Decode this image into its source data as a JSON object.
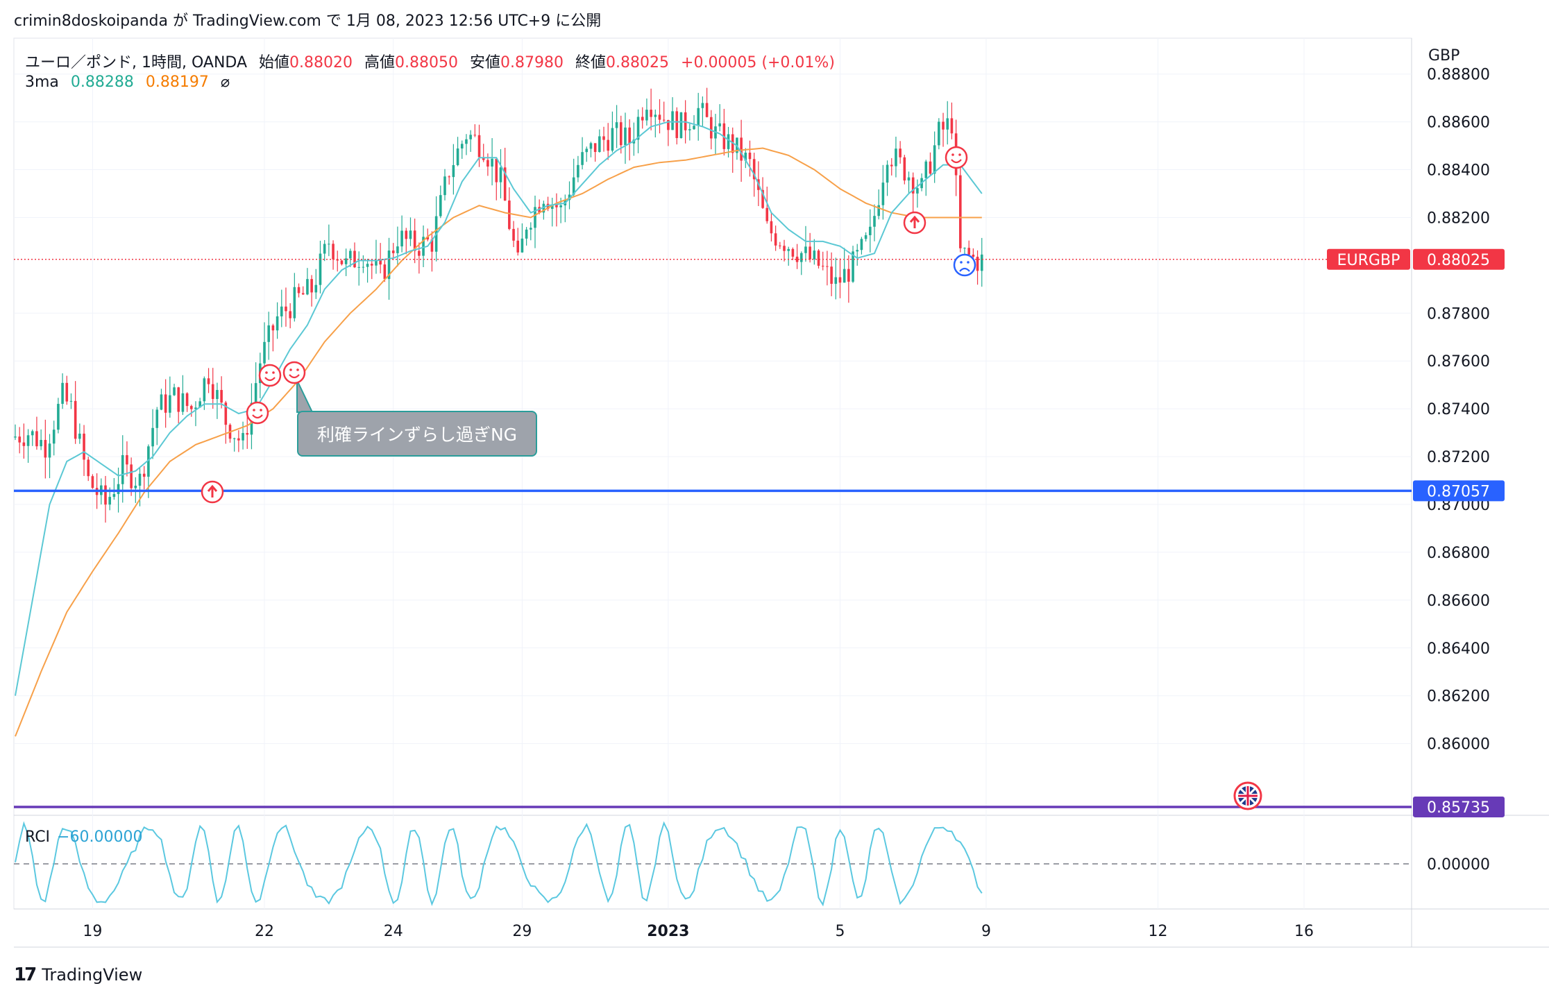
{
  "header": {
    "text": "crimin8doskoipanda が TradingView.com で 1月 08, 2023 12:56 UTC+9 に公開"
  },
  "legend": {
    "symbol": "ユーロ／ポンド, 1時間, OANDA",
    "open_label": "始値",
    "open": "0.88020",
    "high_label": "高値",
    "high": "0.88050",
    "low_label": "安値",
    "low": "0.87980",
    "close_label": "終値",
    "close": "0.88025",
    "change": "+0.00005 (+0.01%)",
    "ma_name": "3ma",
    "ma1": "0.88288",
    "ma2": "0.88197",
    "ma_icon": "⌀"
  },
  "rci": {
    "name": "RCI",
    "value": "−60.00000",
    "zero_label": "0.00000"
  },
  "axis": {
    "unit": "GBP"
  },
  "annotation": {
    "text": "利確ラインずらし過ぎNG"
  },
  "footer": {
    "logo": "17",
    "brand": "TradingView"
  },
  "colors": {
    "up": "#22ab94",
    "down": "#f23645",
    "ma_fast": "#5bc8d4",
    "ma_slow": "#f7a049",
    "hline_blue": "#2962ff",
    "hline_purple": "#673ab7",
    "rci": "#5bc8e0"
  },
  "chart_data": {
    "type": "candlestick",
    "symbol": "EURGBP",
    "interval": "1時間",
    "current_price": "0.88025",
    "price_ticks": [
      "0.88800",
      "0.88600",
      "0.88400",
      "0.88200",
      "0.87800",
      "0.87600",
      "0.87400",
      "0.87200",
      "0.87000",
      "0.86800",
      "0.86600",
      "0.86400",
      "0.86200",
      "0.86000"
    ],
    "ylim": [
      0.857,
      0.8895
    ],
    "x_ticks": [
      {
        "label": "19",
        "bar": 18
      },
      {
        "label": "22",
        "bar": 58
      },
      {
        "label": "24",
        "bar": 88
      },
      {
        "label": "29",
        "bar": 118
      },
      {
        "label": "2023",
        "bar": 152
      },
      {
        "label": "5",
        "bar": 192
      },
      {
        "label": "9",
        "bar": 226
      },
      {
        "label": "12",
        "bar": 266
      },
      {
        "label": "16",
        "bar": 300
      }
    ],
    "horizontal_lines": [
      {
        "label": "0.87057",
        "price": 0.87057,
        "color": "#2962ff"
      },
      {
        "label": "0.85735",
        "price": 0.85735,
        "color": "#673ab7"
      }
    ],
    "price_path": [
      [
        0,
        0.8728
      ],
      [
        4,
        0.873
      ],
      [
        8,
        0.8725
      ],
      [
        12,
        0.8745
      ],
      [
        14,
        0.874
      ],
      [
        18,
        0.871
      ],
      [
        22,
        0.87
      ],
      [
        26,
        0.8715
      ],
      [
        30,
        0.871
      ],
      [
        34,
        0.874
      ],
      [
        38,
        0.8745
      ],
      [
        42,
        0.874
      ],
      [
        46,
        0.8755
      ],
      [
        50,
        0.8735
      ],
      [
        54,
        0.8725
      ],
      [
        58,
        0.876
      ],
      [
        62,
        0.8778
      ],
      [
        66,
        0.8785
      ],
      [
        70,
        0.879
      ],
      [
        74,
        0.881
      ],
      [
        78,
        0.88
      ],
      [
        82,
        0.8805
      ],
      [
        86,
        0.8795
      ],
      [
        90,
        0.8812
      ],
      [
        94,
        0.8808
      ],
      [
        98,
        0.881
      ],
      [
        102,
        0.884
      ],
      [
        106,
        0.8855
      ],
      [
        110,
        0.885
      ],
      [
        114,
        0.8835
      ],
      [
        118,
        0.88
      ],
      [
        120,
        0.8818
      ],
      [
        124,
        0.883
      ],
      [
        128,
        0.8823
      ],
      [
        132,
        0.8842
      ],
      [
        136,
        0.885
      ],
      [
        140,
        0.8855
      ],
      [
        144,
        0.8852
      ],
      [
        148,
        0.887
      ],
      [
        152,
        0.8862
      ],
      [
        156,
        0.8858
      ],
      [
        160,
        0.8865
      ],
      [
        164,
        0.8855
      ],
      [
        168,
        0.885
      ],
      [
        172,
        0.8842
      ],
      [
        176,
        0.8815
      ],
      [
        180,
        0.881
      ],
      [
        184,
        0.8805
      ],
      [
        188,
        0.88
      ],
      [
        192,
        0.8792
      ],
      [
        196,
        0.88
      ],
      [
        200,
        0.8812
      ],
      [
        204,
        0.8848
      ],
      [
        208,
        0.884
      ],
      [
        212,
        0.8832
      ],
      [
        216,
        0.8855
      ],
      [
        219,
        0.886
      ],
      [
        221,
        0.8805
      ],
      [
        225,
        0.8802
      ]
    ],
    "ma_fast_path": [
      [
        0,
        0.862
      ],
      [
        4,
        0.866
      ],
      [
        8,
        0.87
      ],
      [
        12,
        0.8718
      ],
      [
        16,
        0.8722
      ],
      [
        20,
        0.8717
      ],
      [
        24,
        0.8712
      ],
      [
        28,
        0.8714
      ],
      [
        32,
        0.872
      ],
      [
        36,
        0.873
      ],
      [
        40,
        0.8737
      ],
      [
        44,
        0.8742
      ],
      [
        48,
        0.8742
      ],
      [
        52,
        0.8738
      ],
      [
        56,
        0.874
      ],
      [
        60,
        0.8752
      ],
      [
        64,
        0.8765
      ],
      [
        68,
        0.8775
      ],
      [
        72,
        0.879
      ],
      [
        76,
        0.8798
      ],
      [
        80,
        0.8802
      ],
      [
        84,
        0.8802
      ],
      [
        88,
        0.8803
      ],
      [
        92,
        0.8806
      ],
      [
        96,
        0.8808
      ],
      [
        100,
        0.8818
      ],
      [
        104,
        0.8835
      ],
      [
        108,
        0.8845
      ],
      [
        112,
        0.8845
      ],
      [
        116,
        0.8832
      ],
      [
        120,
        0.8822
      ],
      [
        124,
        0.8825
      ],
      [
        128,
        0.8826
      ],
      [
        132,
        0.8834
      ],
      [
        136,
        0.8842
      ],
      [
        140,
        0.8848
      ],
      [
        144,
        0.8852
      ],
      [
        148,
        0.8858
      ],
      [
        152,
        0.886
      ],
      [
        156,
        0.886
      ],
      [
        160,
        0.8858
      ],
      [
        164,
        0.8855
      ],
      [
        168,
        0.885
      ],
      [
        172,
        0.8838
      ],
      [
        176,
        0.8822
      ],
      [
        180,
        0.8815
      ],
      [
        184,
        0.881
      ],
      [
        188,
        0.881
      ],
      [
        192,
        0.8808
      ],
      [
        196,
        0.8803
      ],
      [
        200,
        0.8805
      ],
      [
        204,
        0.8822
      ],
      [
        208,
        0.883
      ],
      [
        212,
        0.8836
      ],
      [
        216,
        0.8842
      ],
      [
        220,
        0.8842
      ],
      [
        225,
        0.883
      ]
    ],
    "ma_slow_path": [
      [
        0,
        0.8603
      ],
      [
        6,
        0.863
      ],
      [
        12,
        0.8655
      ],
      [
        18,
        0.8672
      ],
      [
        24,
        0.8688
      ],
      [
        30,
        0.8705
      ],
      [
        36,
        0.8718
      ],
      [
        42,
        0.8725
      ],
      [
        48,
        0.8729
      ],
      [
        54,
        0.8733
      ],
      [
        60,
        0.874
      ],
      [
        66,
        0.8752
      ],
      [
        72,
        0.8768
      ],
      [
        78,
        0.878
      ],
      [
        84,
        0.879
      ],
      [
        90,
        0.8802
      ],
      [
        96,
        0.8812
      ],
      [
        102,
        0.882
      ],
      [
        108,
        0.8825
      ],
      [
        114,
        0.8822
      ],
      [
        120,
        0.882
      ],
      [
        126,
        0.8826
      ],
      [
        132,
        0.883
      ],
      [
        138,
        0.8836
      ],
      [
        144,
        0.8841
      ],
      [
        150,
        0.8843
      ],
      [
        156,
        0.8844
      ],
      [
        162,
        0.8846
      ],
      [
        168,
        0.8848
      ],
      [
        174,
        0.8849
      ],
      [
        180,
        0.8846
      ],
      [
        186,
        0.884
      ],
      [
        192,
        0.8832
      ],
      [
        198,
        0.8826
      ],
      [
        204,
        0.8822
      ],
      [
        210,
        0.882
      ],
      [
        216,
        0.882
      ],
      [
        222,
        0.882
      ],
      [
        225,
        0.882
      ]
    ]
  }
}
